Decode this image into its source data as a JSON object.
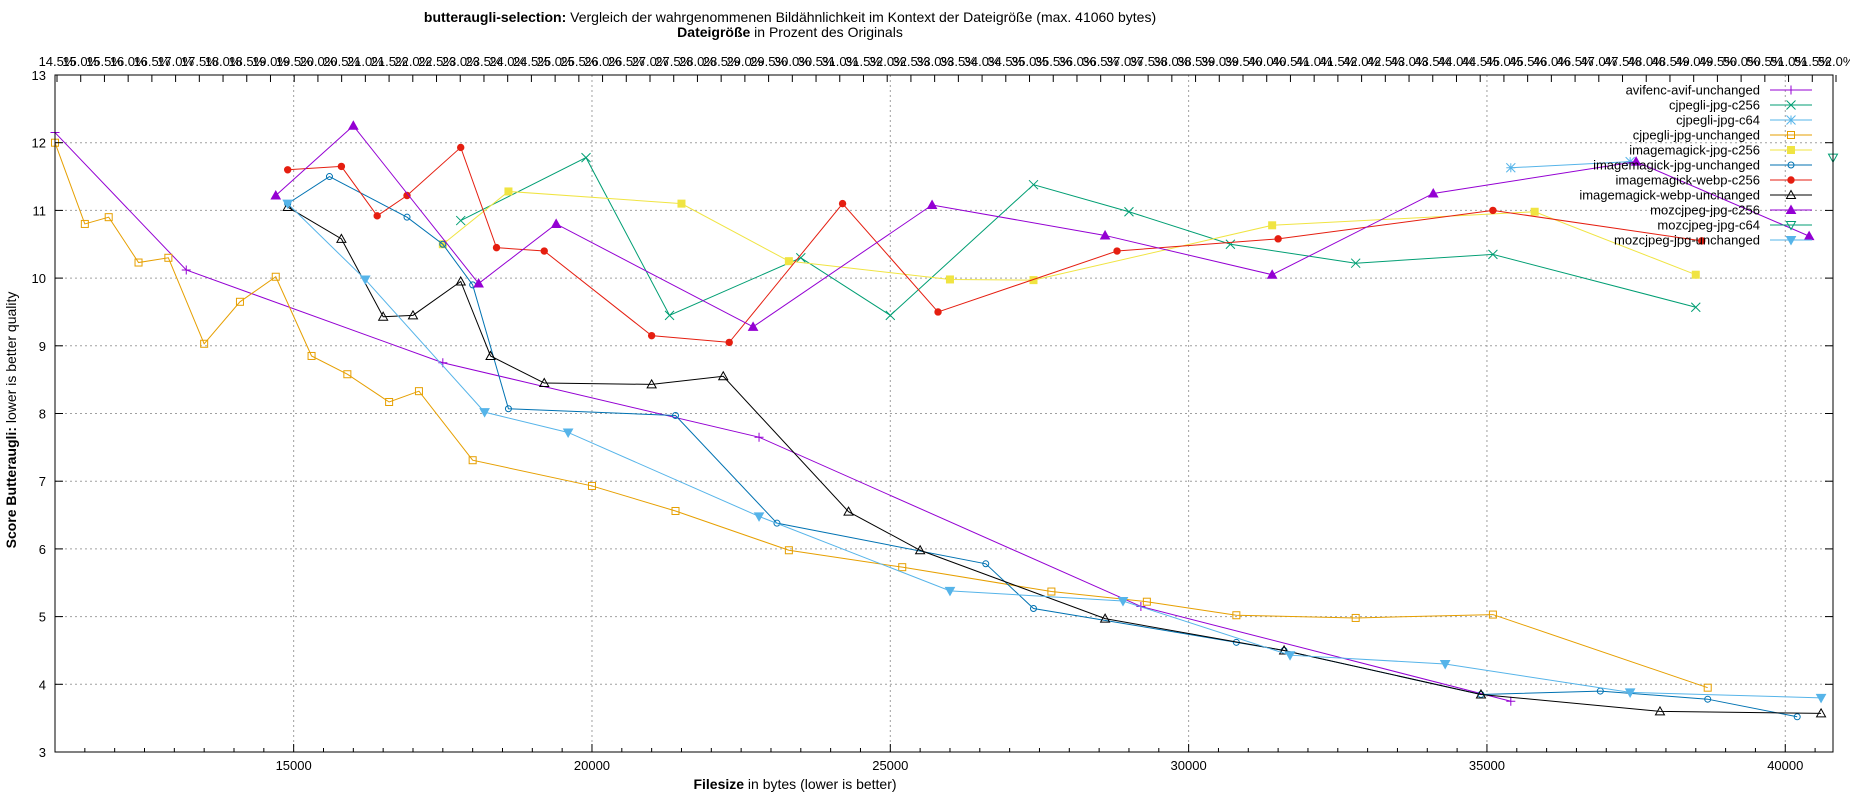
{
  "chart_data": {
    "type": "line",
    "title": {
      "bold": "butteraugli-selection:",
      "rest": " Vergleich der wahrgenommenen Bildähnlichkeit im Kontext der Dateigröße (max. 41060 bytes)"
    },
    "subtitle": {
      "bold": "Dateigröße",
      "rest": " in Prozent des Originals"
    },
    "xlabel": {
      "bold": "Filesize",
      "rest": " in bytes (lower is better)"
    },
    "ylabel": {
      "bold": "Score Butteraugli:",
      "rest": " lower is better quality"
    },
    "xlim": [
      11000,
      40800
    ],
    "ylim": [
      3,
      13
    ],
    "x_ticks": [
      15000,
      20000,
      25000,
      30000,
      35000,
      40000
    ],
    "y_ticks": [
      3,
      4,
      5,
      6,
      7,
      8,
      9,
      10,
      11,
      12,
      13
    ],
    "top_ticks_label": "Dateigröße in Prozent des Originals",
    "top_ticks": [
      "14.5%",
      "15.0%",
      "15.5%",
      "16.0%",
      "16.5%",
      "17.0%",
      "17.5%",
      "18.0%",
      "18.5%",
      "19.0%",
      "19.5%",
      "20.0%",
      "20.5%",
      "21.0%",
      "21.5%",
      "22.0%",
      "22.5%",
      "23.0%",
      "23.5%",
      "24.0%",
      "24.5%",
      "25.0%",
      "25.5%",
      "26.0%",
      "26.5%",
      "27.0%",
      "27.5%",
      "28.0%",
      "28.5%",
      "29.0%",
      "29.5%",
      "30.0%",
      "30.5%",
      "31.0%",
      "31.5%",
      "32.0%",
      "32.5%",
      "33.0%",
      "33.5%",
      "34.0%",
      "34.5%",
      "35.0%",
      "35.5%",
      "36.0%",
      "36.5%",
      "37.0%",
      "37.5%",
      "38.0%",
      "38.5%",
      "39.0%",
      "39.5%",
      "40.0%",
      "40.5%",
      "41.0%",
      "41.5%",
      "42.0%",
      "42.5%",
      "43.0%",
      "43.5%",
      "44.0%",
      "44.5%",
      "45.0%",
      "45.5%",
      "46.0%",
      "46.5%",
      "47.0%",
      "47.5%",
      "48.0%",
      "48.5%",
      "49.0%",
      "49.5%",
      "50.0%",
      "50.5%",
      "51.0%",
      "51.5%",
      "52.0%"
    ],
    "grid": true,
    "legend_position": "top-right",
    "series": [
      {
        "name": "avifenc-avif-unchanged",
        "color": "#9400d3",
        "marker": "plus",
        "x": [
          11000,
          13200,
          17500,
          22800,
          29200,
          35400
        ],
        "y": [
          12.15,
          10.12,
          8.75,
          7.65,
          5.15,
          3.75
        ]
      },
      {
        "name": "cjpegli-jpg-c256",
        "color": "#009e73",
        "marker": "cross",
        "x": [
          17800,
          19900,
          21300,
          23500,
          25000,
          27400,
          29000,
          30700,
          32800,
          35100,
          38500
        ],
        "y": [
          10.85,
          11.78,
          9.45,
          10.3,
          9.45,
          11.38,
          10.98,
          10.5,
          10.22,
          10.35,
          9.57
        ]
      },
      {
        "name": "cjpegli-jpg-c64",
        "color": "#56b4e9",
        "marker": "star",
        "x": [
          35400,
          37400
        ],
        "y": [
          11.63,
          11.72
        ]
      },
      {
        "name": "cjpegli-jpg-unchanged",
        "color": "#e69f00",
        "marker": "open-square",
        "x": [
          11000,
          11500,
          11900,
          12400,
          12900,
          13500,
          14100,
          14700,
          15300,
          15900,
          16600,
          17100,
          18000,
          20000,
          21400,
          23300,
          25200,
          27700,
          29300,
          30800,
          32800,
          35100,
          38700
        ],
        "y": [
          12.0,
          10.8,
          10.9,
          10.23,
          10.3,
          9.03,
          9.65,
          10.02,
          8.85,
          8.58,
          8.17,
          8.33,
          7.31,
          6.93,
          6.56,
          5.98,
          5.73,
          5.37,
          5.22,
          5.02,
          4.98,
          5.03,
          3.95
        ]
      },
      {
        "name": "imagemagick-jpg-c256",
        "color": "#f0e442",
        "marker": "filled-square",
        "x": [
          17500,
          18600,
          21500,
          23300,
          26000,
          27400,
          31400,
          35800,
          38500
        ],
        "y": [
          10.5,
          11.28,
          11.1,
          10.25,
          9.98,
          9.97,
          10.78,
          10.98,
          10.05
        ]
      },
      {
        "name": "imagemagick-jpg-unchanged",
        "color": "#0072b2",
        "marker": "open-circle",
        "x": [
          14900,
          15600,
          16900,
          17500,
          18000,
          18600,
          21400,
          23100,
          26600,
          27400,
          30800,
          31600,
          34900,
          36900,
          38700,
          40200
        ],
        "y": [
          11.1,
          11.5,
          10.9,
          10.5,
          9.9,
          8.07,
          7.97,
          6.38,
          5.78,
          5.12,
          4.62,
          4.5,
          3.85,
          3.9,
          3.78,
          3.52
        ]
      },
      {
        "name": "imagemagick-webp-c256",
        "color": "#e51e10",
        "marker": "filled-circle",
        "x": [
          14900,
          15800,
          16400,
          16900,
          17800,
          18400,
          19200,
          21000,
          22300,
          24200,
          25800,
          28800,
          31500,
          35100,
          38600
        ],
        "y": [
          11.6,
          11.65,
          10.92,
          11.22,
          11.93,
          10.45,
          10.4,
          9.15,
          9.05,
          11.1,
          9.5,
          10.4,
          10.58,
          11.0,
          10.55
        ]
      },
      {
        "name": "imagemagick-webp-unchanged",
        "color": "#000000",
        "marker": "open-triangle",
        "x": [
          14900,
          15800,
          16500,
          17000,
          17800,
          18300,
          19200,
          21000,
          22200,
          24300,
          25500,
          28600,
          31600,
          34900,
          37900,
          40600
        ],
        "y": [
          11.05,
          10.58,
          9.43,
          9.45,
          9.95,
          8.85,
          8.45,
          8.43,
          8.55,
          6.55,
          5.98,
          4.97,
          4.5,
          3.85,
          3.6,
          3.57
        ]
      },
      {
        "name": "mozcjpeg-jpg-c256",
        "color": "#9400d3",
        "marker": "filled-triangle",
        "x": [
          14700,
          16000,
          18100,
          19400,
          22700,
          25700,
          28600,
          31400,
          34100,
          37500,
          40400
        ],
        "y": [
          11.22,
          12.25,
          9.92,
          10.8,
          9.28,
          11.08,
          10.63,
          10.05,
          11.25,
          11.72,
          10.62
        ]
      },
      {
        "name": "mozcjpeg-jpg-c64",
        "color": "#009e73",
        "marker": "open-triangle-down",
        "x": [
          40800
        ],
        "y": [
          11.78
        ]
      },
      {
        "name": "mozcjpeg-jpg-unchanged",
        "color": "#56b4e9",
        "marker": "filled-triangle-down",
        "x": [
          14900,
          16200,
          18200,
          19600,
          22800,
          26000,
          28900,
          31700,
          34300,
          37400,
          40600
        ],
        "y": [
          11.1,
          9.98,
          8.02,
          7.72,
          6.48,
          5.38,
          5.23,
          4.43,
          4.3,
          3.88,
          3.8
        ]
      }
    ]
  }
}
